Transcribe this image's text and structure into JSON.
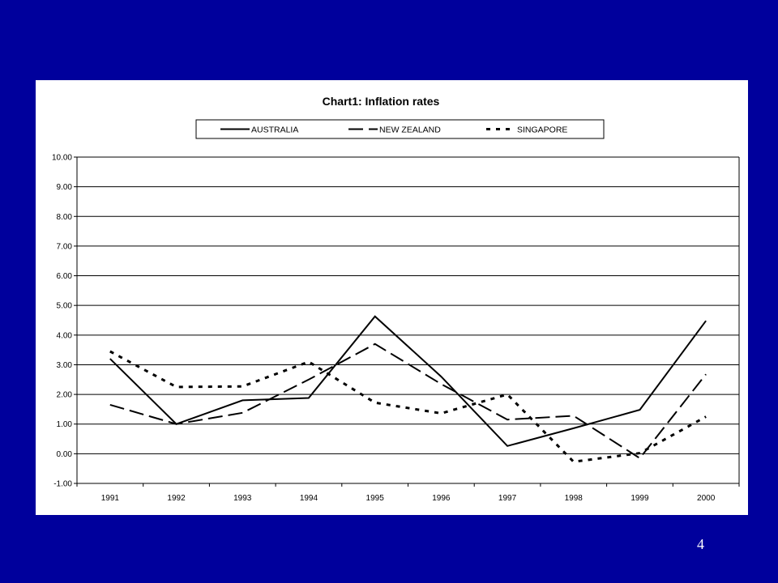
{
  "slide": {
    "page_number": "4",
    "background_color": "#00009c"
  },
  "chart_data": {
    "type": "line",
    "title": "Chart1: Inflation rates",
    "xlabel": "",
    "ylabel": "",
    "categories": [
      "1991",
      "1992",
      "1993",
      "1994",
      "1995",
      "1996",
      "1997",
      "1998",
      "1999",
      "2000"
    ],
    "ylim": [
      -1,
      10
    ],
    "yticks": [
      "-1.00",
      "0.00",
      "1.00",
      "2.00",
      "3.00",
      "4.00",
      "5.00",
      "6.00",
      "7.00",
      "8.00",
      "9.00",
      "10.00"
    ],
    "grid": "horizontal",
    "legend_position": "top",
    "series": [
      {
        "name": "AUSTRALIA",
        "line_style": "solid",
        "color": "#000000",
        "values": [
          3.2,
          1.0,
          1.8,
          1.88,
          4.63,
          2.6,
          0.26,
          0.86,
          1.48,
          4.48
        ]
      },
      {
        "name": "NEW ZEALAND",
        "line_style": "long-dash",
        "color": "#000000",
        "values": [
          1.65,
          1.0,
          1.38,
          2.5,
          3.7,
          2.35,
          1.15,
          1.28,
          -0.15,
          2.68
        ]
      },
      {
        "name": "SINGAPORE",
        "line_style": "dotted",
        "color": "#000000",
        "values": [
          3.45,
          2.25,
          2.27,
          3.1,
          1.72,
          1.36,
          2.0,
          -0.27,
          0.02,
          1.25
        ]
      }
    ]
  }
}
